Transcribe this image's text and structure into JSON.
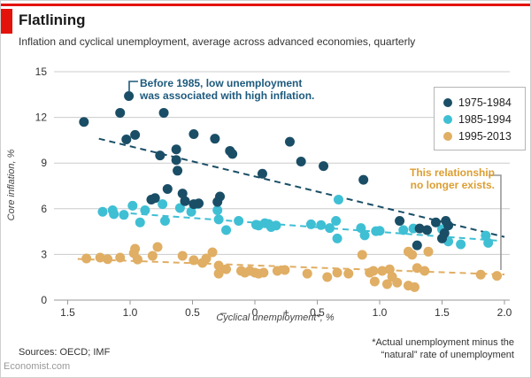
{
  "header": {
    "title": "Flatlining",
    "subtitle": "Inflation and cyclical unemployment, average across advanced economies, quarterly"
  },
  "legend": {
    "items": [
      {
        "label": "1975-1984",
        "color": "#1a4e66"
      },
      {
        "label": "1985-1994",
        "color": "#3fbfd4"
      },
      {
        "label": "1995-2013",
        "color": "#e0ae64"
      }
    ]
  },
  "annotations": {
    "before_1985": {
      "line1": "Before 1985, low unemployment",
      "line2": "was associated with high inflation.",
      "color": "#1d5a7d"
    },
    "no_longer": {
      "line1": "This relationship",
      "line2": "no longer exists.",
      "color": "#dc9e32"
    }
  },
  "footer": {
    "sources": "Sources: OECD; IMF",
    "footnote_line1": "*Actual unemployment minus the",
    "footnote_line2": "“natural” rate of unemployment",
    "site": "Economist.com"
  },
  "colors": {
    "accent_red": "#e3120b",
    "grid": "#cccccc",
    "axis": "#9a9a9a",
    "bracket": "#999999",
    "navy": "#1a4e66",
    "cyan": "#3fbfd4",
    "tan": "#e0ae64"
  },
  "chart_data": {
    "type": "scatter",
    "title": "Flatlining",
    "xlabel": "Cyclical unemployment*, %",
    "ylabel": "Core inflation, %",
    "xlim": [
      -1.8,
      2.2
    ],
    "ylim": [
      0,
      15
    ],
    "grid": "horizontal",
    "legend_position": "top-right",
    "y_ticks": [
      0,
      3,
      6,
      9,
      12,
      15
    ],
    "x_axis_ticks": [
      -1.5,
      -1.0,
      -0.5,
      0,
      0.5,
      1.0,
      1.5,
      2.0
    ],
    "x_tick_labels": [
      {
        "v": -1.5,
        "t": "1.5"
      },
      {
        "v": -1.0,
        "t": "1.0"
      },
      {
        "v": -0.5,
        "t": "0.5"
      },
      {
        "v": -0.25,
        "t": "–"
      },
      {
        "v": 0,
        "t": "0"
      },
      {
        "v": 0.25,
        "t": "+"
      },
      {
        "v": 0.5,
        "t": "0.5"
      },
      {
        "v": 1.0,
        "t": "1.0"
      },
      {
        "v": 1.5,
        "t": "1.5"
      },
      {
        "v": 2.0,
        "t": "2.0"
      }
    ],
    "series": [
      {
        "id": "1995-2013",
        "name": "1995-2013",
        "color": "#e0ae64",
        "trend": [
          [
            -1.42,
            2.7
          ],
          [
            2.0,
            1.68
          ]
        ],
        "points": [
          [
            -1.35,
            2.73
          ],
          [
            -1.24,
            2.79
          ],
          [
            -1.18,
            2.69
          ],
          [
            -1.08,
            2.79
          ],
          [
            -0.97,
            3.08
          ],
          [
            -0.96,
            3.37
          ],
          [
            -0.94,
            2.67
          ],
          [
            -0.82,
            2.91
          ],
          [
            -0.78,
            3.49
          ],
          [
            -0.58,
            2.91
          ],
          [
            -0.49,
            2.62
          ],
          [
            -0.42,
            2.44
          ],
          [
            -0.39,
            2.73
          ],
          [
            -0.34,
            3.14
          ],
          [
            -0.29,
            2.27
          ],
          [
            -0.29,
            1.74
          ],
          [
            -0.23,
            2.03
          ],
          [
            -0.11,
            1.92
          ],
          [
            -0.08,
            1.8
          ],
          [
            -0.04,
            1.92
          ],
          [
            0.0,
            1.8
          ],
          [
            0.03,
            1.74
          ],
          [
            0.07,
            1.8
          ],
          [
            0.18,
            1.92
          ],
          [
            0.24,
            1.98
          ],
          [
            0.42,
            1.74
          ],
          [
            0.58,
            1.51
          ],
          [
            0.66,
            1.8
          ],
          [
            0.75,
            1.74
          ],
          [
            0.86,
            2.97
          ],
          [
            0.92,
            1.8
          ],
          [
            0.95,
            1.92
          ],
          [
            0.96,
            1.22
          ],
          [
            1.02,
            1.92
          ],
          [
            1.08,
            2.02
          ],
          [
            1.1,
            1.53
          ],
          [
            1.06,
            1.05
          ],
          [
            1.14,
            1.15
          ],
          [
            1.23,
            0.95
          ],
          [
            1.28,
            0.85
          ],
          [
            1.23,
            3.18
          ],
          [
            1.26,
            2.98
          ],
          [
            1.39,
            3.18
          ],
          [
            1.3,
            2.11
          ],
          [
            1.36,
            1.92
          ],
          [
            1.81,
            1.67
          ],
          [
            1.94,
            1.59
          ]
        ]
      },
      {
        "id": "1985-1994",
        "name": "1985-1994",
        "color": "#3fbfd4",
        "trend": [
          [
            -1.25,
            5.85
          ],
          [
            1.95,
            3.9
          ]
        ],
        "points": [
          [
            -1.22,
            5.8
          ],
          [
            -1.14,
            5.9
          ],
          [
            -1.13,
            5.65
          ],
          [
            -1.05,
            5.6
          ],
          [
            -0.98,
            6.2
          ],
          [
            -0.92,
            5.1
          ],
          [
            -0.88,
            5.9
          ],
          [
            -0.74,
            6.3
          ],
          [
            -0.72,
            5.2
          ],
          [
            -0.6,
            6.05
          ],
          [
            -0.51,
            5.8
          ],
          [
            -0.46,
            6.3
          ],
          [
            -0.3,
            5.9
          ],
          [
            -0.29,
            5.3
          ],
          [
            -0.23,
            4.6
          ],
          [
            -0.13,
            5.2
          ],
          [
            0.01,
            4.95
          ],
          [
            0.03,
            4.9
          ],
          [
            0.08,
            5.05
          ],
          [
            0.11,
            5.0
          ],
          [
            0.13,
            4.8
          ],
          [
            0.17,
            4.9
          ],
          [
            0.45,
            4.98
          ],
          [
            0.53,
            4.93
          ],
          [
            0.6,
            4.73
          ],
          [
            0.65,
            5.2
          ],
          [
            0.66,
            4.05
          ],
          [
            0.67,
            6.6
          ],
          [
            0.85,
            4.73
          ],
          [
            0.88,
            4.25
          ],
          [
            0.97,
            4.53
          ],
          [
            1.0,
            4.55
          ],
          [
            1.19,
            4.6
          ],
          [
            1.27,
            4.7
          ],
          [
            1.5,
            4.65
          ],
          [
            1.55,
            3.85
          ],
          [
            1.65,
            3.66
          ],
          [
            1.85,
            4.24
          ],
          [
            1.87,
            3.76
          ]
        ]
      },
      {
        "id": "1975-1984",
        "name": "1975-1984",
        "color": "#1a4e66",
        "trend": [
          [
            -1.25,
            10.6
          ],
          [
            2.0,
            4.15
          ]
        ],
        "points": [
          [
            -1.37,
            11.7
          ],
          [
            -1.08,
            12.3
          ],
          [
            -1.01,
            13.4
          ],
          [
            -0.73,
            12.3
          ],
          [
            -1.03,
            10.55
          ],
          [
            -0.96,
            10.85
          ],
          [
            -0.49,
            10.9
          ],
          [
            -0.63,
            9.9
          ],
          [
            -0.76,
            9.5
          ],
          [
            -0.63,
            9.2
          ],
          [
            -0.62,
            8.5
          ],
          [
            -0.7,
            7.3
          ],
          [
            -0.83,
            6.6
          ],
          [
            -0.8,
            6.7
          ],
          [
            -0.58,
            7.0
          ],
          [
            -0.56,
            6.5
          ],
          [
            -0.49,
            6.3
          ],
          [
            -0.45,
            6.35
          ],
          [
            -0.3,
            6.45
          ],
          [
            -0.32,
            10.6
          ],
          [
            -0.2,
            9.8
          ],
          [
            -0.18,
            9.6
          ],
          [
            0.06,
            8.3
          ],
          [
            0.28,
            10.4
          ],
          [
            0.37,
            9.1
          ],
          [
            0.55,
            8.8
          ],
          [
            0.87,
            7.9
          ],
          [
            -0.28,
            6.8
          ],
          [
            1.16,
            5.2
          ],
          [
            1.3,
            3.6
          ],
          [
            1.32,
            4.7
          ],
          [
            1.38,
            4.6
          ],
          [
            1.45,
            5.1
          ],
          [
            1.5,
            4.05
          ],
          [
            1.52,
            4.4
          ],
          [
            1.53,
            5.2
          ],
          [
            1.55,
            4.9
          ]
        ]
      }
    ]
  }
}
